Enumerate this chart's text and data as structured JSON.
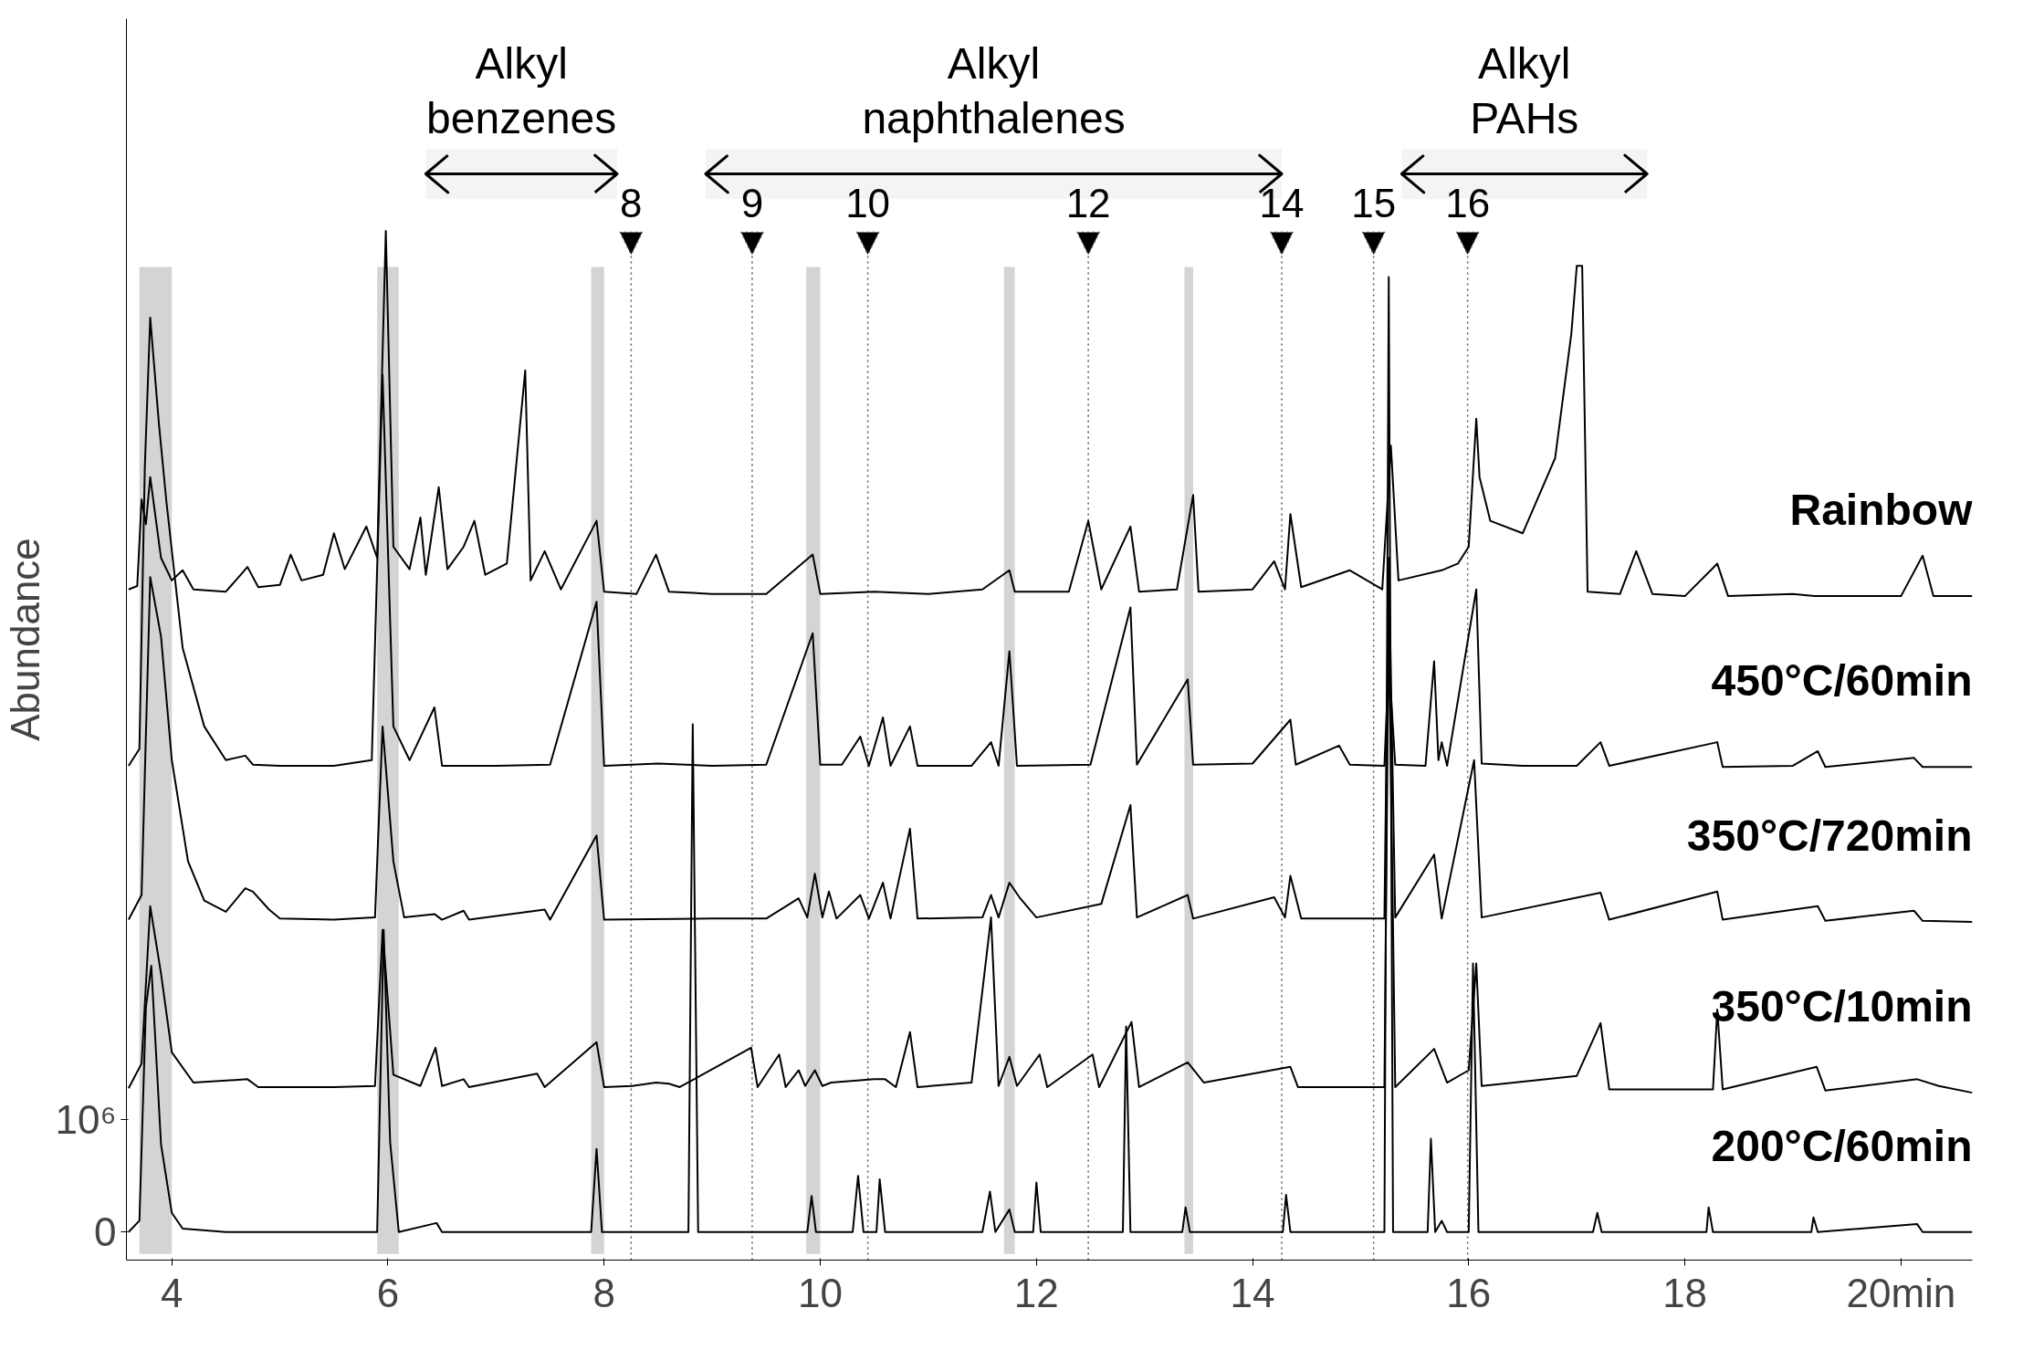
{
  "chart_data": {
    "type": "line",
    "ylabel": "Abundance",
    "legend": false,
    "grid": false,
    "marker": "none",
    "line_style": "solid",
    "xlim": [
      3.58,
      20.66
    ],
    "ylim": [
      -250000,
      10800000
    ],
    "xticks": [
      4,
      6,
      8,
      10,
      12,
      14,
      16,
      18,
      {
        "value": 20,
        "label": "20min"
      }
    ],
    "yticks": [
      {
        "value": 0,
        "label": "0"
      },
      {
        "value": 1000000,
        "label": "10⁶"
      }
    ],
    "series": [
      {
        "name": "Rainbow",
        "color": "#000000",
        "x": [
          3.6,
          3.68,
          3.72,
          3.76,
          3.8,
          3.9,
          4.0,
          4.1,
          4.2,
          4.5,
          4.7,
          4.8,
          5.0,
          5.1,
          5.2,
          5.4,
          5.5,
          5.6,
          5.8,
          5.9,
          5.98,
          6.05,
          6.2,
          6.3,
          6.35,
          6.47,
          6.55,
          6.7,
          6.8,
          6.9,
          7.1,
          7.27,
          7.32,
          7.45,
          7.6,
          7.93,
          8.0,
          8.3,
          8.48,
          8.6,
          9.0,
          9.5,
          9.93,
          10.0,
          10.5,
          11.0,
          11.5,
          11.75,
          11.8,
          12.3,
          12.48,
          12.6,
          12.87,
          12.95,
          13.3,
          13.45,
          13.5,
          14.0,
          14.2,
          14.3,
          14.35,
          14.45,
          14.9,
          15.2,
          15.28,
          15.35,
          15.75,
          15.9,
          16.0,
          16.07,
          16.1,
          16.2,
          16.5,
          16.8,
          16.95,
          17.0,
          17.05,
          17.1,
          17.4,
          17.55,
          17.7,
          18.0,
          18.3,
          18.4,
          19.0,
          19.2,
          19.5,
          20.0,
          20.2,
          20.3,
          20.66
        ],
        "values": [
          5720000,
          5750000,
          6520000,
          6300000,
          6720000,
          6000000,
          5800000,
          5890000,
          5720000,
          5700000,
          5920000,
          5740000,
          5760000,
          6030000,
          5800000,
          5850000,
          6220000,
          5900000,
          6280000,
          6000000,
          8910000,
          6100000,
          5900000,
          6360000,
          5850000,
          6630000,
          5900000,
          6100000,
          6330000,
          5850000,
          5950000,
          7670000,
          5800000,
          6060000,
          5720000,
          6330000,
          5700000,
          5680000,
          6030000,
          5700000,
          5680000,
          5680000,
          6030000,
          5680000,
          5700000,
          5680000,
          5720000,
          5890000,
          5700000,
          5700000,
          6330000,
          5720000,
          6280000,
          5700000,
          5720000,
          6560000,
          5700000,
          5720000,
          5970000,
          5720000,
          6390000,
          5740000,
          5890000,
          5720000,
          7000000,
          5800000,
          5890000,
          5950000,
          6100000,
          7240000,
          6720000,
          6330000,
          6220000,
          6890000,
          8000000,
          8600000,
          8600000,
          5700000,
          5680000,
          6060000,
          5680000,
          5660000,
          5950000,
          5660000,
          5680000,
          5660000,
          5660000,
          5660000,
          6020000,
          5660000,
          5660000
        ]
      },
      {
        "name": "450°C/60min",
        "color": "#000000",
        "x": [
          3.6,
          3.7,
          3.75,
          3.8,
          3.88,
          3.95,
          4.1,
          4.3,
          4.5,
          4.68,
          4.75,
          5.0,
          5.5,
          5.85,
          5.95,
          6.05,
          6.2,
          6.43,
          6.5,
          7.0,
          7.5,
          7.93,
          8.0,
          8.5,
          9.0,
          9.5,
          9.93,
          10.0,
          10.2,
          10.37,
          10.45,
          10.58,
          10.65,
          10.83,
          10.9,
          11.4,
          11.58,
          11.65,
          11.75,
          11.82,
          12.5,
          12.87,
          12.93,
          13.4,
          13.45,
          14.0,
          14.35,
          14.4,
          14.8,
          14.9,
          15.22,
          15.26,
          15.32,
          15.6,
          15.68,
          15.72,
          15.75,
          15.8,
          16.07,
          16.12,
          16.5,
          17.0,
          17.22,
          17.3,
          18.3,
          18.35,
          19.0,
          19.23,
          19.3,
          20.12,
          20.2,
          20.66
        ],
        "values": [
          4150000,
          4300000,
          6800000,
          8140000,
          7200000,
          6500000,
          5200000,
          4500000,
          4200000,
          4240000,
          4160000,
          4150000,
          4150000,
          4200000,
          7630000,
          4500000,
          4200000,
          4670000,
          4150000,
          4150000,
          4160000,
          5610000,
          4150000,
          4170000,
          4150000,
          4160000,
          5330000,
          4160000,
          4160000,
          4410000,
          4150000,
          4580000,
          4150000,
          4500000,
          4150000,
          4150000,
          4360000,
          4150000,
          5170000,
          4150000,
          4160000,
          5560000,
          4160000,
          4920000,
          4160000,
          4170000,
          4560000,
          4160000,
          4330000,
          4160000,
          4150000,
          5100000,
          4160000,
          4150000,
          5080000,
          4200000,
          4360000,
          4150000,
          5720000,
          4170000,
          4150000,
          4150000,
          4360000,
          4150000,
          4360000,
          4140000,
          4150000,
          4280000,
          4140000,
          4220000,
          4140000,
          4140000
        ]
      },
      {
        "name": "350°C/720min",
        "color": "#000000",
        "x": [
          3.6,
          3.72,
          3.8,
          3.9,
          4.0,
          4.15,
          4.3,
          4.5,
          4.68,
          4.75,
          4.9,
          5.0,
          5.5,
          5.88,
          5.95,
          6.05,
          6.15,
          6.43,
          6.5,
          6.7,
          6.75,
          7.45,
          7.5,
          7.93,
          8.0,
          9.0,
          9.5,
          9.8,
          9.88,
          9.95,
          10.02,
          10.08,
          10.15,
          10.37,
          10.45,
          10.58,
          10.65,
          10.83,
          10.9,
          11.5,
          11.58,
          11.65,
          11.75,
          11.85,
          12.0,
          12.6,
          12.87,
          12.93,
          13.4,
          13.45,
          14.2,
          14.3,
          14.35,
          14.45,
          15.22,
          15.26,
          15.32,
          15.68,
          15.75,
          16.05,
          16.12,
          17.22,
          17.3,
          18.3,
          18.35,
          19.23,
          19.3,
          20.12,
          20.2,
          20.66
        ],
        "values": [
          2780000,
          3000000,
          5830000,
          5300000,
          4200000,
          3300000,
          2950000,
          2850000,
          3060000,
          3030000,
          2870000,
          2790000,
          2780000,
          2800000,
          4500000,
          3300000,
          2800000,
          2830000,
          2780000,
          2860000,
          2780000,
          2870000,
          2780000,
          3530000,
          2780000,
          2790000,
          2790000,
          2970000,
          2800000,
          3190000,
          2800000,
          3030000,
          2790000,
          3000000,
          2790000,
          3110000,
          2790000,
          3590000,
          2790000,
          2800000,
          3000000,
          2800000,
          3110000,
          2970000,
          2800000,
          2920000,
          3800000,
          2800000,
          3000000,
          2790000,
          2980000,
          2800000,
          3170000,
          2790000,
          2790000,
          6000000,
          2800000,
          3360000,
          2790000,
          4200000,
          2800000,
          3020000,
          2780000,
          3030000,
          2780000,
          2900000,
          2770000,
          2860000,
          2770000,
          2760000
        ]
      },
      {
        "name": "350°C/10min",
        "color": "#000000",
        "x": [
          3.6,
          3.72,
          3.8,
          3.9,
          4.0,
          4.2,
          4.7,
          4.8,
          5.5,
          5.88,
          5.95,
          6.05,
          6.3,
          6.44,
          6.5,
          6.7,
          6.75,
          7.38,
          7.45,
          7.93,
          8.0,
          8.26,
          8.48,
          8.6,
          8.7,
          9.36,
          9.42,
          9.62,
          9.68,
          9.8,
          9.86,
          9.95,
          10.02,
          10.1,
          10.5,
          10.6,
          10.7,
          10.83,
          10.9,
          11.4,
          11.58,
          11.65,
          11.75,
          11.82,
          12.03,
          12.1,
          12.52,
          12.58,
          12.88,
          12.95,
          13.4,
          13.55,
          14.35,
          14.42,
          15.22,
          15.26,
          15.32,
          15.68,
          15.8,
          16.0,
          16.07,
          16.12,
          17.0,
          17.22,
          17.3,
          18.26,
          18.3,
          18.35,
          19.22,
          19.3,
          20.15,
          20.35,
          20.66
        ],
        "values": [
          1280000,
          1500000,
          2900000,
          2300000,
          1600000,
          1330000,
          1360000,
          1290000,
          1290000,
          1300000,
          2690000,
          1400000,
          1300000,
          1640000,
          1300000,
          1360000,
          1290000,
          1410000,
          1290000,
          1690000,
          1290000,
          1300000,
          1330000,
          1320000,
          1290000,
          1640000,
          1290000,
          1580000,
          1290000,
          1440000,
          1300000,
          1440000,
          1300000,
          1330000,
          1360000,
          1360000,
          1290000,
          1780000,
          1290000,
          1330000,
          2800000,
          1300000,
          1560000,
          1300000,
          1580000,
          1290000,
          1580000,
          1290000,
          1870000,
          1290000,
          1510000,
          1330000,
          1470000,
          1290000,
          1290000,
          5500000,
          1290000,
          1630000,
          1330000,
          1440000,
          2390000,
          1300000,
          1390000,
          1860000,
          1270000,
          1270000,
          1980000,
          1270000,
          1470000,
          1260000,
          1360000,
          1300000,
          1240000
        ]
      },
      {
        "name": "200°C/60min",
        "color": "#000000",
        "x": [
          3.6,
          3.7,
          3.76,
          3.81,
          3.9,
          4.0,
          4.1,
          4.5,
          5.5,
          5.9,
          5.96,
          6.02,
          6.1,
          6.45,
          6.5,
          7.5,
          7.88,
          7.93,
          7.98,
          8.78,
          8.82,
          8.87,
          9.5,
          9.88,
          9.92,
          9.96,
          10.3,
          10.35,
          10.4,
          10.52,
          10.55,
          10.6,
          11.5,
          11.57,
          11.62,
          11.75,
          11.8,
          11.97,
          12.0,
          12.04,
          12.8,
          12.83,
          12.87,
          13.35,
          13.38,
          13.42,
          14.28,
          14.31,
          14.35,
          15.22,
          15.26,
          15.3,
          15.62,
          15.65,
          15.69,
          15.75,
          15.8,
          16.0,
          16.04,
          16.09,
          17.15,
          17.19,
          17.23,
          18.2,
          18.22,
          18.26,
          19.17,
          19.19,
          19.23,
          20.15,
          20.2,
          20.66
        ],
        "values": [
          0,
          100000,
          2000000,
          2370000,
          780000,
          170000,
          30000,
          0,
          0,
          0,
          2690000,
          800000,
          0,
          80000,
          0,
          0,
          0,
          740000,
          0,
          0,
          4520000,
          0,
          0,
          0,
          320000,
          0,
          0,
          500000,
          0,
          0,
          470000,
          0,
          0,
          360000,
          0,
          200000,
          0,
          0,
          440000,
          0,
          0,
          1830000,
          0,
          0,
          220000,
          0,
          0,
          330000,
          0,
          0,
          8500000,
          0,
          0,
          830000,
          0,
          100000,
          0,
          0,
          2390000,
          0,
          0,
          170000,
          0,
          0,
          220000,
          0,
          0,
          130000,
          0,
          70000,
          0,
          0
        ]
      }
    ],
    "ref_lines": [
      {
        "axis": "x",
        "value": 8.25,
        "label": "8",
        "line_style": "dotted"
      },
      {
        "axis": "x",
        "value": 9.37,
        "label": "9",
        "line_style": "dotted"
      },
      {
        "axis": "x",
        "value": 10.44,
        "label": "10",
        "line_style": "dotted"
      },
      {
        "axis": "x",
        "value": 12.48,
        "label": "12",
        "line_style": "dotted"
      },
      {
        "axis": "x",
        "value": 14.27,
        "label": "14",
        "line_style": "dotted"
      },
      {
        "axis": "x",
        "value": 15.12,
        "label": "15",
        "line_style": "dotted"
      },
      {
        "axis": "x",
        "value": 15.99,
        "label": "16",
        "line_style": "dotted"
      }
    ],
    "bands": [
      {
        "axis": "x",
        "from": 3.7,
        "to": 4.0,
        "color": "#d4d4d4"
      },
      {
        "axis": "x",
        "from": 5.9,
        "to": 6.1,
        "color": "#d4d4d4"
      },
      {
        "axis": "x",
        "from": 7.88,
        "to": 8.0,
        "color": "#d4d4d4"
      },
      {
        "axis": "x",
        "from": 9.87,
        "to": 10.0,
        "color": "#d4d4d4"
      },
      {
        "axis": "x",
        "from": 11.7,
        "to": 11.8,
        "color": "#d4d4d4"
      },
      {
        "axis": "x",
        "from": 13.37,
        "to": 13.45,
        "color": "#d4d4d4"
      },
      {
        "axis": "x",
        "from": 6.35,
        "to": 8.12,
        "label": "Alkyl benzenes"
      },
      {
        "axis": "x",
        "from": 8.94,
        "to": 14.27,
        "label": "Alkyl naphthalenes"
      },
      {
        "axis": "x",
        "from": 15.38,
        "to": 17.65,
        "label": "Alkyl PAHs"
      }
    ]
  }
}
